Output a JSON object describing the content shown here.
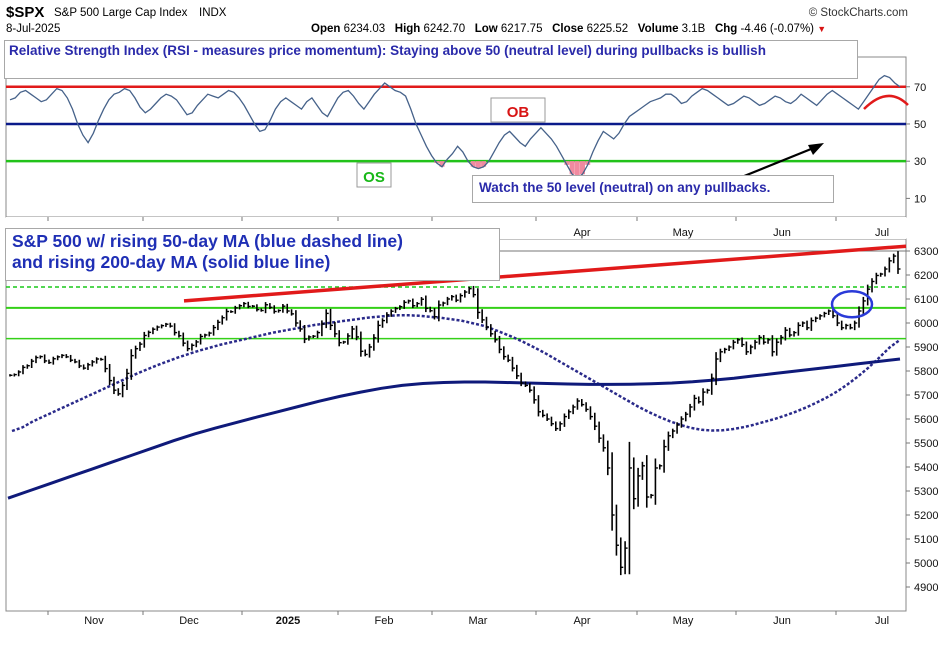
{
  "header": {
    "symbol": "$SPX",
    "name": "S&P 500 Large Cap Index",
    "exchange": "INDX",
    "date": "8-Jul-2025",
    "open_label": "Open",
    "open_value": "6234.03",
    "high_label": "High",
    "high_value": "6242.70",
    "low_label": "Low",
    "low_value": "6217.75",
    "close_label": "Close",
    "close_value": "6225.52",
    "volume_label": "Volume",
    "volume_value": "3.1B",
    "chg_label": "Chg",
    "chg_value": "-4.46 (-0.07%)",
    "chg_marker": "▼",
    "source": "© StockCharts.com"
  },
  "colors": {
    "page_bg": "#ffffff",
    "panel_bg": "#ffffff",
    "border": "#888888",
    "rsi_line": "#46628a",
    "ob_line": "#e11a1a",
    "mid_line": "#0a1a8a",
    "os_line": "#22c21a",
    "fill_pink": "#f08aa0",
    "annotation_text": "#2a2aaa",
    "price_bar": "#000000",
    "ma50": "#2a2a8a",
    "ma200": "#0f1a7a",
    "trend_red": "#e11a1a",
    "level_green": "#34d018",
    "level_green_dash": "#1ac81a",
    "circle_blue": "#2a3ad8",
    "circle_red": "#e11a1a",
    "ob_text": "#d81414",
    "os_text": "#18b818"
  },
  "rsi_panel": {
    "annotation_title": "Relative Strength Index (RSI - measures price momentum): Staying above 50 (neutral level) during pullbacks is bullish",
    "note": "Watch the 50 level (neutral) on any pullbacks.",
    "ob_label": "OB",
    "os_label": "OS"
  },
  "price_panel": {
    "annotation_line1": "S&P 500 w/ rising 50-day MA (blue dashed line)",
    "annotation_line2": "and rising 200-day MA (solid blue line)"
  },
  "x_axis": {
    "months": [
      "Nov",
      "Dec",
      "2025",
      "Feb",
      "Mar",
      "Apr",
      "May",
      "Jun",
      "Jul"
    ]
  },
  "chart_data": [
    {
      "type": "line",
      "name": "RSI",
      "y_ticks": [
        10,
        30,
        50,
        70
      ],
      "ylim": [
        0,
        86
      ],
      "levels": [
        {
          "label": "OB",
          "value": 70
        },
        {
          "label": "",
          "value": 50
        },
        {
          "label": "OS",
          "value": 30
        }
      ],
      "values": [
        63,
        64,
        67,
        68,
        66,
        64,
        62,
        63,
        66,
        69,
        68,
        64,
        58,
        50,
        44,
        40,
        45,
        52,
        58,
        63,
        66,
        67,
        69,
        68,
        64,
        59,
        56,
        58,
        61,
        64,
        66,
        65,
        63,
        59,
        55,
        56,
        60,
        63,
        66,
        65,
        64,
        66,
        68,
        67,
        64,
        60,
        55,
        50,
        46,
        47,
        52,
        58,
        62,
        64,
        62,
        60,
        58,
        62,
        64,
        60,
        56,
        54,
        59,
        64,
        67,
        68,
        65,
        61,
        58,
        62,
        66,
        69,
        72,
        70,
        68,
        67,
        65,
        58,
        50,
        44,
        38,
        33,
        29,
        27,
        31,
        34,
        38,
        35,
        30,
        27,
        26,
        27,
        30,
        35,
        40,
        44,
        46,
        43,
        40,
        38,
        42,
        45,
        48,
        45,
        42,
        38,
        33,
        28,
        23,
        21,
        23,
        28,
        35,
        41,
        46,
        44,
        42,
        45,
        50,
        54,
        56,
        58,
        60,
        62,
        63,
        64,
        66,
        66,
        64,
        61,
        62,
        65,
        67,
        69,
        68,
        66,
        64,
        62,
        60,
        61,
        63,
        65,
        64,
        62,
        60,
        61,
        63,
        65,
        64,
        62,
        61,
        63,
        66,
        64,
        62,
        60,
        63,
        66,
        68,
        66,
        64,
        62,
        60,
        58,
        62,
        66,
        70,
        74,
        76,
        75,
        72,
        70
      ]
    },
    {
      "type": "bar",
      "name": "$SPX",
      "ylim": [
        4800,
        6350
      ],
      "y_ticks": [
        4900,
        5000,
        5100,
        5200,
        5300,
        5400,
        5500,
        5600,
        5700,
        5800,
        5900,
        6000,
        6100,
        6200,
        6300
      ],
      "close": [
        5782,
        5785,
        5796,
        5815,
        5822,
        5841,
        5856,
        5860,
        5842,
        5835,
        5851,
        5859,
        5865,
        5859,
        5845,
        5838,
        5821,
        5812,
        5826,
        5838,
        5850,
        5848,
        5810,
        5760,
        5720,
        5705,
        5740,
        5790,
        5864,
        5893,
        5912,
        5948,
        5961,
        5974,
        5983,
        5989,
        5995,
        5987,
        5960,
        5947,
        5916,
        5893,
        5907,
        5921,
        5944,
        5950,
        5958,
        5981,
        6003,
        6022,
        6048,
        6047,
        6063,
        6072,
        6081,
        6069,
        6070,
        6056,
        6052,
        6076,
        6065,
        6048,
        6052,
        6070,
        6050,
        6038,
        6000,
        5975,
        5933,
        5942,
        5945,
        5960,
        5996,
        6040,
        5990,
        5955,
        5918,
        5921,
        5946,
        5975,
        5942,
        5882,
        5869,
        5900,
        5938,
        5990,
        6010,
        6034,
        6049,
        6060,
        6068,
        6086,
        6092,
        6072,
        6081,
        6099,
        6061,
        6051,
        6026,
        6075,
        6083,
        6100,
        6110,
        6095,
        6114,
        6129,
        6143,
        6118,
        6044,
        6013,
        5983,
        5955,
        5930,
        5890,
        5860,
        5845,
        5812,
        5780,
        5750,
        5740,
        5720,
        5680,
        5630,
        5615,
        5600,
        5580,
        5560,
        5580,
        5610,
        5630,
        5650,
        5675,
        5660,
        5640,
        5610,
        5570,
        5520,
        5480,
        5396,
        5200,
        5074,
        4982,
        5062,
        5396,
        5268,
        5363,
        5405,
        5275,
        5282,
        5396,
        5405,
        5485,
        5530,
        5550,
        5575,
        5600,
        5620,
        5650,
        5686,
        5672,
        5712,
        5720,
        5770,
        5850,
        5880,
        5890,
        5900,
        5920,
        5930,
        5910,
        5880,
        5900,
        5920,
        5940,
        5920,
        5930,
        5880,
        5920,
        5940,
        5970,
        5950,
        5960,
        5990,
        6000,
        5980,
        6010,
        6020,
        6030,
        6040,
        6050,
        6030,
        6000,
        5980,
        5990,
        5980,
        6000,
        6050,
        6092,
        6141,
        6173,
        6198,
        6204,
        6225,
        6259,
        6279,
        6225
      ]
    },
    {
      "type": "line",
      "name": "50-day MA",
      "values": [
        5550,
        5565,
        5590,
        5610,
        5630,
        5650,
        5670,
        5690,
        5710,
        5730,
        5750,
        5770,
        5790,
        5808,
        5826,
        5842,
        5858,
        5872,
        5886,
        5898,
        5910,
        5920,
        5930,
        5940,
        5950,
        5960,
        5968,
        5976,
        5984,
        5992,
        5998,
        6004,
        6010,
        6016,
        6022,
        6026,
        6030,
        6032,
        6032,
        6030,
        6026,
        6022,
        6016,
        6010,
        6000,
        5990,
        5975,
        5958,
        5940,
        5920,
        5898,
        5875,
        5850,
        5825,
        5800,
        5775,
        5750,
        5725,
        5700,
        5675,
        5650,
        5628,
        5608,
        5590,
        5575,
        5563,
        5555,
        5552,
        5553,
        5558,
        5566,
        5576,
        5588,
        5600,
        5614,
        5630,
        5648,
        5668,
        5690,
        5715,
        5745,
        5778,
        5815,
        5855,
        5898,
        5930
      ]
    },
    {
      "type": "line",
      "name": "200-day MA",
      "values": [
        5270,
        5300,
        5330,
        5360,
        5390,
        5420,
        5450,
        5480,
        5510,
        5538,
        5562,
        5585,
        5608,
        5630,
        5652,
        5674,
        5694,
        5712,
        5728,
        5740,
        5748,
        5752,
        5754,
        5754,
        5752,
        5750,
        5748,
        5746,
        5744,
        5744,
        5745,
        5747,
        5750,
        5755,
        5762,
        5770,
        5780,
        5790,
        5800,
        5810,
        5820,
        5830,
        5840,
        5850
      ]
    }
  ]
}
